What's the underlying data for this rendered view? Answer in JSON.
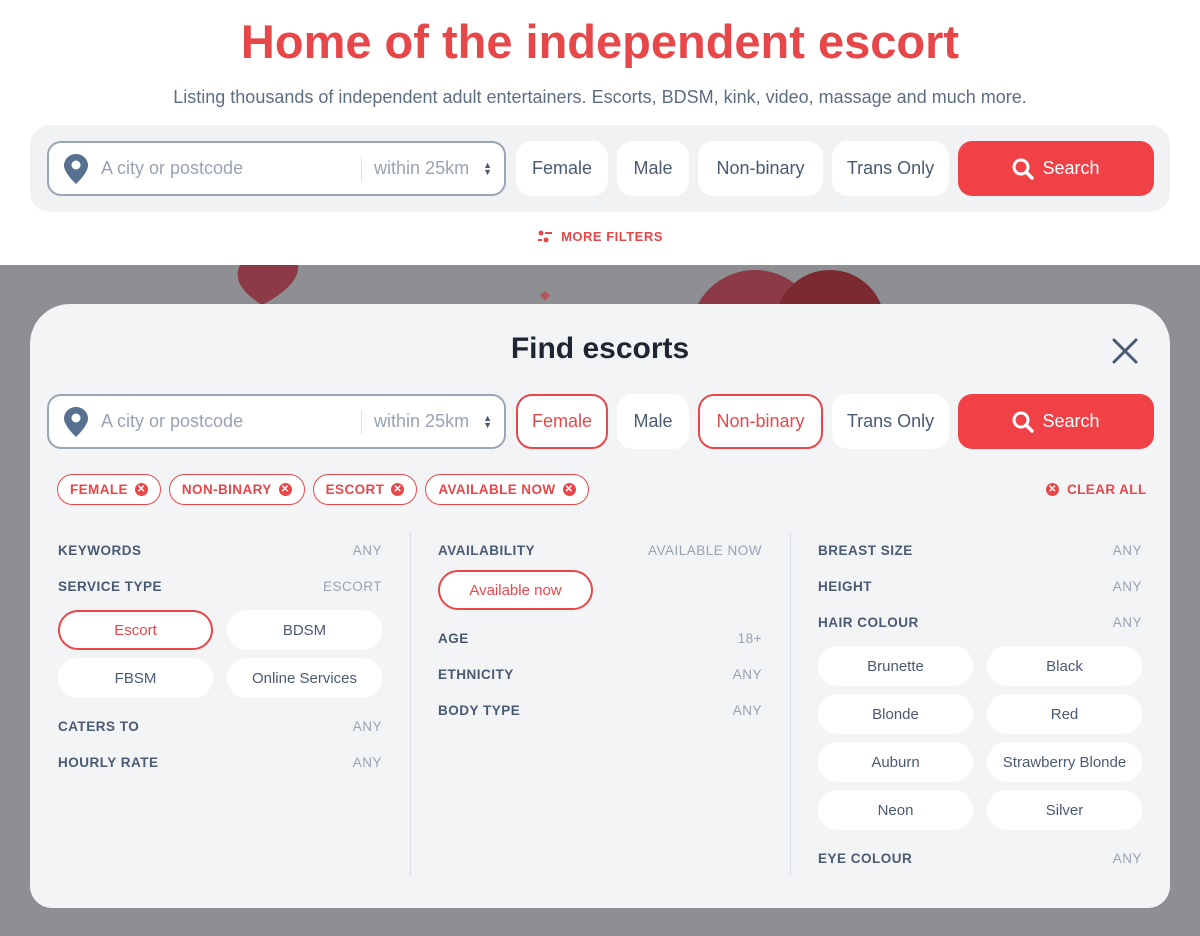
{
  "hero": {
    "title": "Home of the independent escort",
    "subtitle": "Listing thousands of independent adult entertainers. Escorts, BDSM, kink, video, massage and much more."
  },
  "search": {
    "placeholder": "A city or postcode",
    "radius": "within 25km",
    "genders": [
      {
        "label": "Female",
        "selected": false
      },
      {
        "label": "Male",
        "selected": false
      },
      {
        "label": "Non-binary",
        "selected": false
      },
      {
        "label": "Trans Only",
        "selected": false
      }
    ],
    "search_label": "Search",
    "more_filters": "MORE FILTERS"
  },
  "modal": {
    "title": "Find escorts",
    "search": {
      "placeholder": "A city or postcode",
      "radius": "within 25km",
      "genders": [
        {
          "label": "Female",
          "selected": true
        },
        {
          "label": "Male",
          "selected": false
        },
        {
          "label": "Non-binary",
          "selected": true
        },
        {
          "label": "Trans Only",
          "selected": false
        }
      ],
      "search_label": "Search"
    },
    "chips": [
      "FEMALE",
      "NON-BINARY",
      "ESCORT",
      "AVAILABLE NOW"
    ],
    "clear_all": "CLEAR ALL",
    "col1": {
      "keywords": {
        "label": "KEYWORDS",
        "value": "ANY"
      },
      "service_type": {
        "label": "SERVICE TYPE",
        "value": "ESCORT",
        "options": [
          {
            "label": "Escort",
            "selected": true
          },
          {
            "label": "BDSM",
            "selected": false
          },
          {
            "label": "FBSM",
            "selected": false
          },
          {
            "label": "Online Services",
            "selected": false
          }
        ]
      },
      "caters_to": {
        "label": "CATERS TO",
        "value": "ANY"
      },
      "hourly_rate": {
        "label": "HOURLY RATE",
        "value": "ANY"
      }
    },
    "col2": {
      "availability": {
        "label": "AVAILABILITY",
        "value": "AVAILABLE NOW",
        "option": "Available now"
      },
      "age": {
        "label": "AGE",
        "value": "18+"
      },
      "ethnicity": {
        "label": "ETHNICITY",
        "value": "ANY"
      },
      "body_type": {
        "label": "BODY TYPE",
        "value": "ANY"
      }
    },
    "col3": {
      "breast_size": {
        "label": "BREAST SIZE",
        "value": "ANY"
      },
      "height": {
        "label": "HEIGHT",
        "value": "ANY"
      },
      "hair_colour": {
        "label": "HAIR COLOUR",
        "value": "ANY",
        "options": [
          "Brunette",
          "Black",
          "Blonde",
          "Red",
          "Auburn",
          "Strawberry Blonde",
          "Neon",
          "Silver"
        ]
      },
      "eye_colour": {
        "label": "EYE COLOUR",
        "value": "ANY"
      }
    }
  },
  "colors": {
    "accent": "#ef4146",
    "text": "#4a5a72",
    "overlay": "#8e8f93"
  }
}
